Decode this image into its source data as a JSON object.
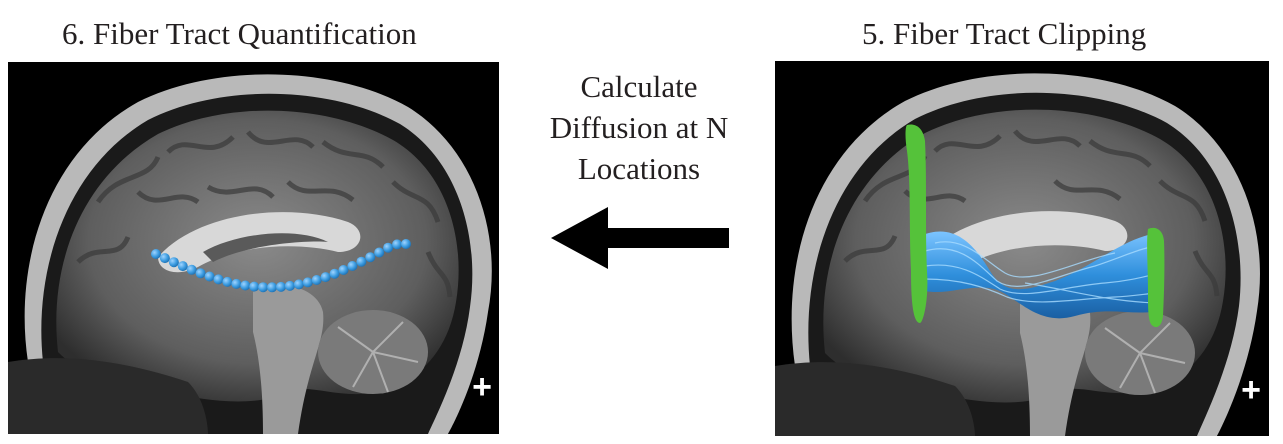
{
  "panels": {
    "left": {
      "title": "6. Fiber Tract Quantification",
      "marker": "+"
    },
    "right": {
      "title": "5. Fiber Tract Clipping",
      "marker": "+"
    }
  },
  "arrow": {
    "caption_lines": [
      "Calculate",
      "Diffusion at N",
      "Locations"
    ],
    "direction": "left"
  },
  "colors": {
    "text": "#231f20",
    "arrow": "#000000",
    "sample_points": "#3b9be0",
    "fiber_tract": "#2f8fdc",
    "clipping_planes": "#55c23a",
    "scan_background": "#000000"
  }
}
